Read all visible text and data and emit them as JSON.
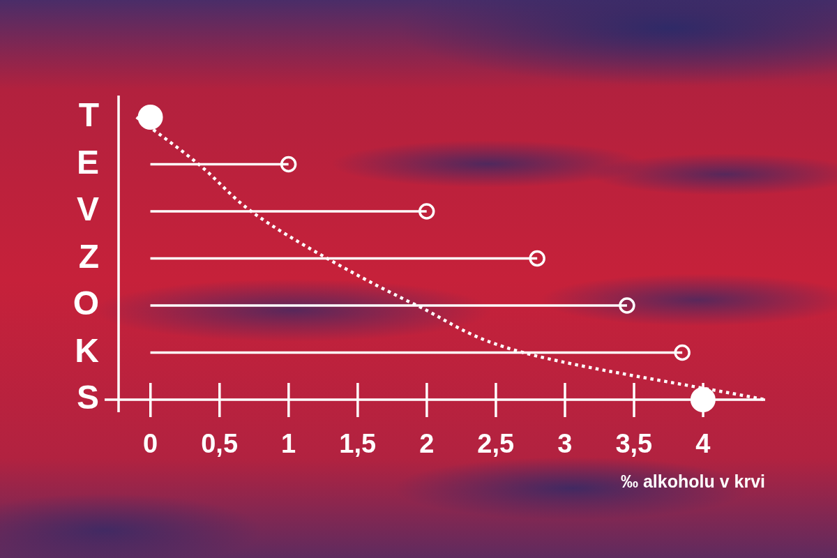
{
  "chart_data": {
    "type": "lollipop",
    "orientation": "horizontal",
    "categories": [
      "T",
      "E",
      "V",
      "Z",
      "O",
      "K",
      "S"
    ],
    "xlabel": "‰ alkoholu v krvi",
    "xlim": [
      -0.23,
      4.45
    ],
    "xticks": [
      0,
      {
        "value": 0.5,
        "label": "0,5"
      },
      1,
      {
        "value": 1.5,
        "label": "1,5"
      },
      2,
      {
        "value": 2.5,
        "label": "2,5"
      },
      3,
      {
        "value": 3.5,
        "label": "3,5"
      },
      4
    ],
    "series": [
      {
        "type": "lollipop",
        "color": "#ffffff",
        "marker": "circle",
        "values": [
          null,
          1,
          2,
          2.8,
          3.45,
          3.85,
          null
        ]
      },
      {
        "type": "scatter",
        "color": "#ffffff",
        "marker": "circle",
        "x": [
          "T",
          "S"
        ],
        "values": [
          0,
          4
        ]
      },
      {
        "type": "line",
        "color": "#ffffff",
        "marker": "none",
        "line_style": "dotted",
        "values": [
          -0.1,
          0.35,
          0.73,
          1.28,
          1.93,
          2.7,
          4.45
        ]
      }
    ]
  }
}
